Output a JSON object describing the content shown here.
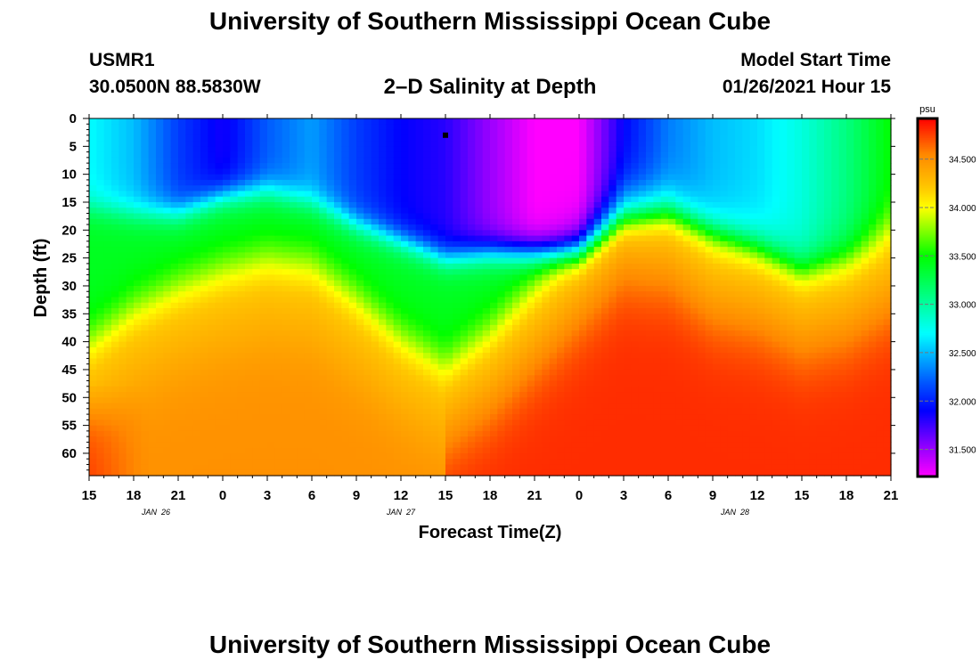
{
  "header": {
    "title": "University of Southern Mississippi Ocean Cube",
    "station_id": "USMR1",
    "station_location": "30.0500N 88.5830W",
    "model_label": "Model Start Time",
    "model_start": "01/26/2021 Hour 15"
  },
  "footer": {
    "title": "University of Southern Mississippi Ocean Cube"
  },
  "colors": {
    "low": "#ff00ff",
    "mid_low": "#0000ff",
    "mid": "#00ffff",
    "mid_high": "#00ff00",
    "high_yellow": "#ffff00",
    "high": "#ff0000"
  },
  "chart_data": {
    "type": "heatmap",
    "title": "2–D Salinity at Depth",
    "xlabel": "Forecast Time(Z)",
    "ylabel": "Depth (ft)",
    "x_tick_labels": [
      "15",
      "18",
      "21",
      "0",
      "3",
      "6",
      "9",
      "12",
      "15",
      "18",
      "21",
      "0",
      "3",
      "6",
      "9",
      "12",
      "15",
      "18",
      "21"
    ],
    "x_range_hours": [
      0,
      54
    ],
    "day_labels": [
      {
        "label": "JAN 26",
        "hour": 4.5
      },
      {
        "label": "JAN 27",
        "hour": 21
      },
      {
        "label": "JAN 28",
        "hour": 43.5
      }
    ],
    "y_tick_labels": [
      "0",
      "5",
      "10",
      "15",
      "20",
      "25",
      "30",
      "35",
      "40",
      "45",
      "50",
      "55",
      "60"
    ],
    "y_range_ft": [
      0,
      64
    ],
    "colorbar": {
      "unit": "psu",
      "ticks": [
        "31.500",
        "32.000",
        "32.500",
        "33.000",
        "33.500",
        "34.000",
        "34.500"
      ],
      "range": [
        31.22,
        34.92
      ]
    },
    "surface_layer_depth_ft": [
      16,
      17,
      17,
      14,
      13,
      15,
      19,
      22,
      25,
      24,
      24,
      24,
      18,
      17,
      20,
      23,
      27,
      25,
      23
    ],
    "thermocline_depth_ft": [
      44,
      38,
      34,
      31,
      29,
      30,
      36,
      43,
      48,
      42,
      34,
      26,
      18,
      19,
      25,
      27,
      31,
      29,
      24
    ],
    "surface_salinity_psu": [
      32.7,
      32.5,
      32.1,
      31.85,
      32.2,
      32.4,
      32.1,
      31.9,
      31.8,
      31.5,
      31.22,
      31.22,
      31.9,
      32.3,
      32.5,
      32.6,
      32.8,
      33.1,
      33.5
    ],
    "min_marker": {
      "hour": 24,
      "depth_ft": 3
    }
  }
}
